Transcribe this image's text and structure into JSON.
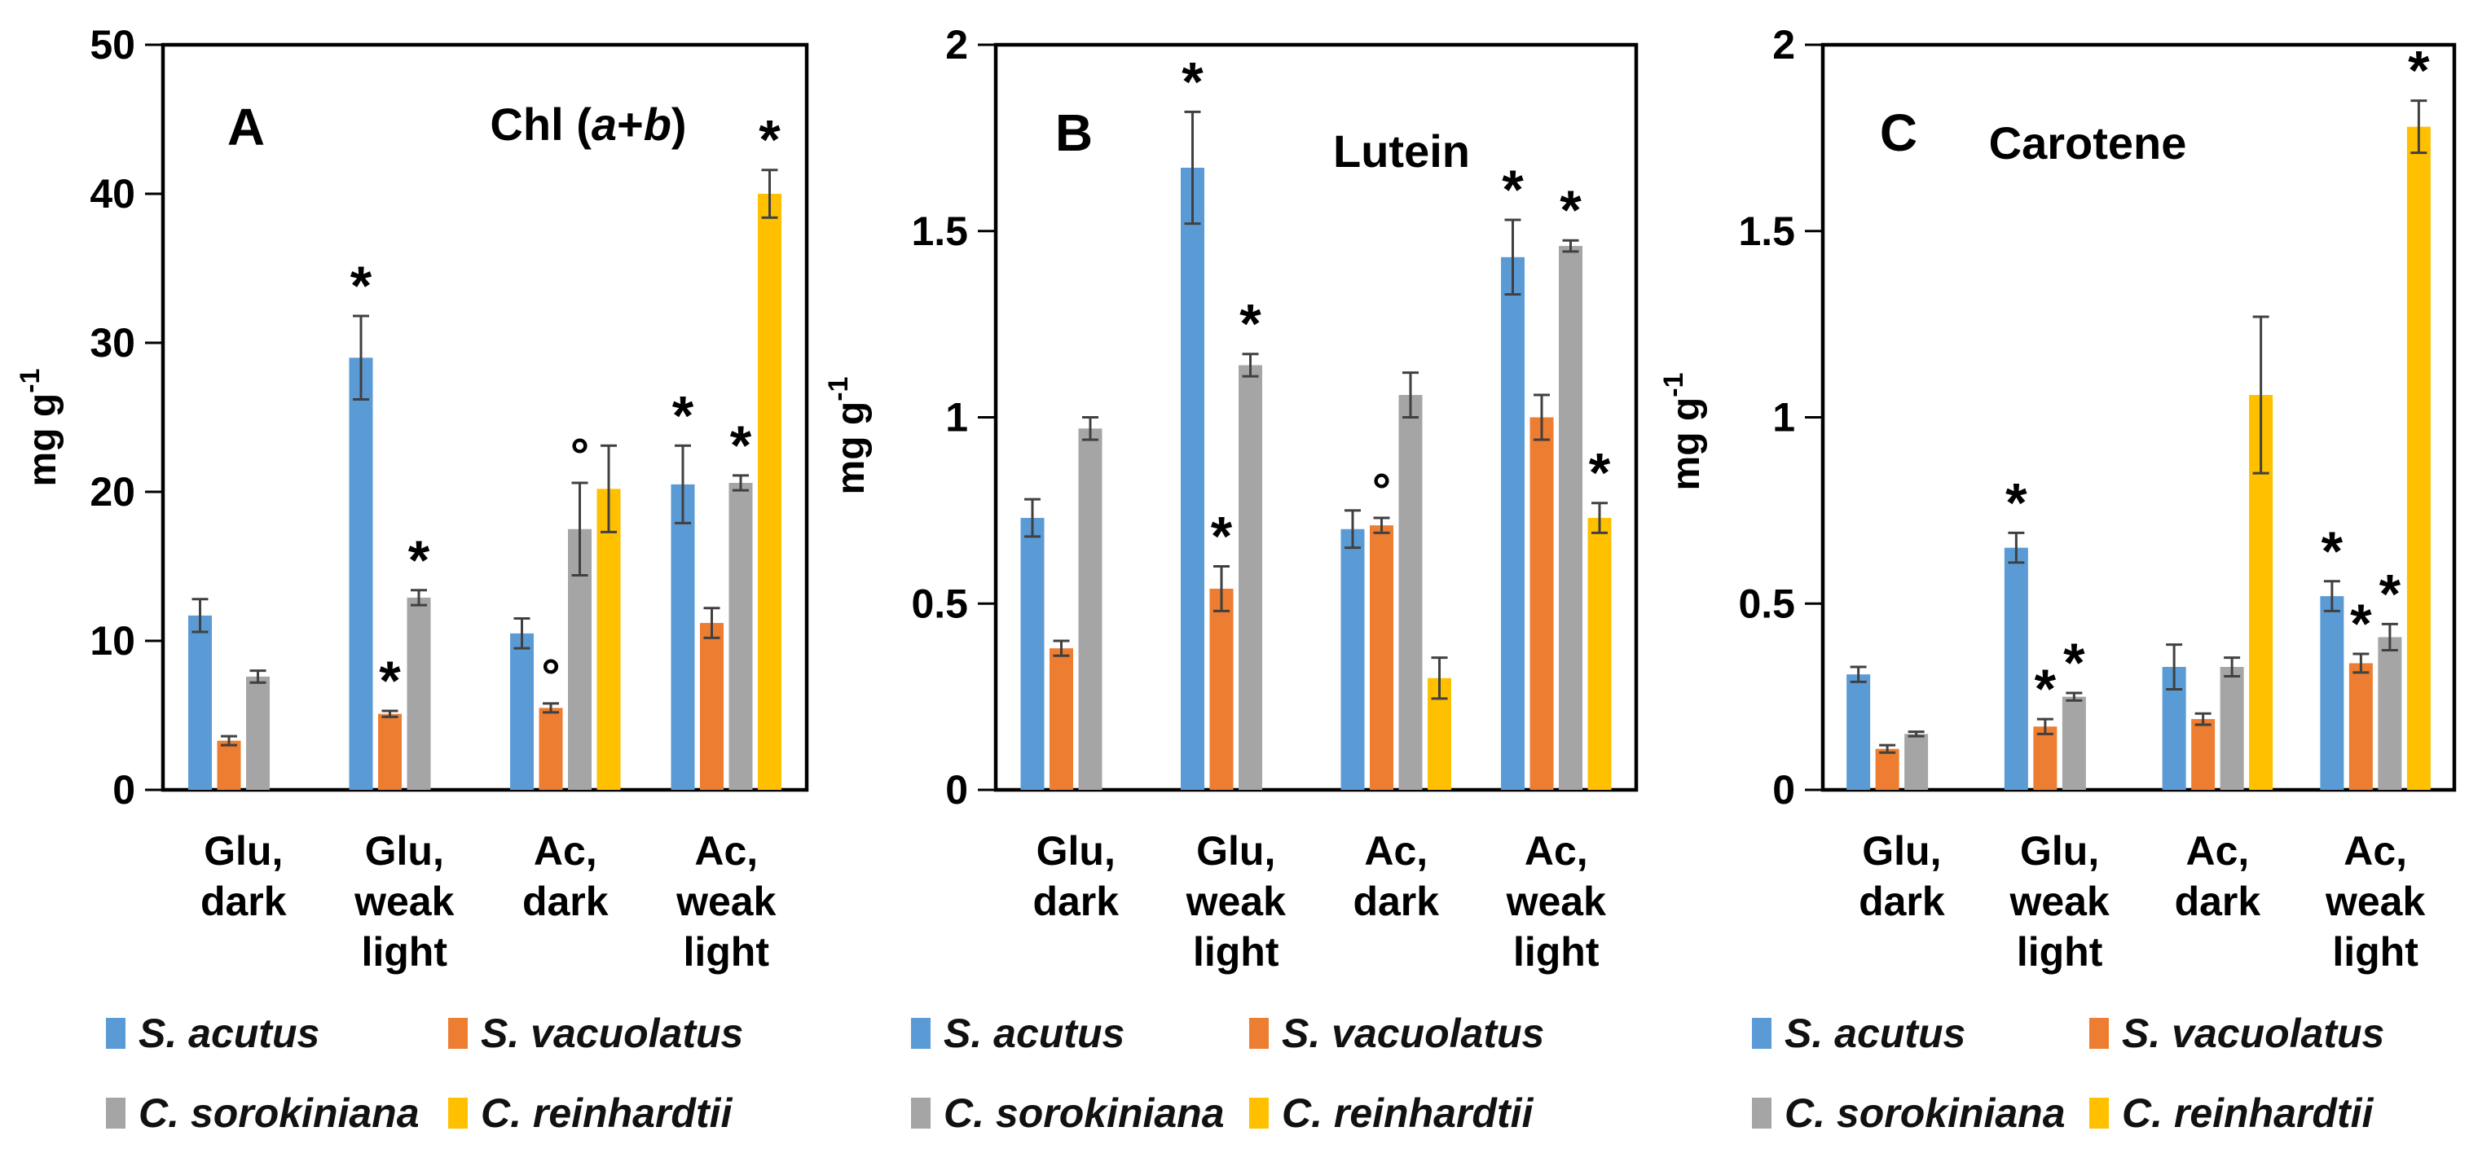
{
  "figure": {
    "background": "#FFFFFF"
  },
  "legend": {
    "items": [
      {
        "label": "S. acutus",
        "color": "#5B9BD5"
      },
      {
        "label": "S. vacuolatus",
        "color": "#ED7D31"
      },
      {
        "label": "C. sorokiniana",
        "color": "#A5A5A5"
      },
      {
        "label": "C. reinhardtii",
        "color": "#FFC000"
      }
    ]
  },
  "chart_data": [
    {
      "type": "bar",
      "panel_label": "A",
      "title": "Chl (a+b)",
      "title_segments": [
        {
          "text": "Chl (",
          "italic": false
        },
        {
          "text": "a",
          "italic": true
        },
        {
          "text": "+",
          "italic": false
        },
        {
          "text": "b",
          "italic": true
        },
        {
          "text": ")",
          "italic": false
        }
      ],
      "ylabel_base": "mg g",
      "ylabel_exponent": "-1",
      "ylim": [
        0,
        50
      ],
      "yticks": [
        0,
        10,
        20,
        30,
        40,
        50
      ],
      "ytick_labels": [
        "0",
        "10",
        "20",
        "30",
        "40",
        "50"
      ],
      "categories": [
        [
          "Glu,",
          "dark"
        ],
        [
          "Glu,",
          "weak",
          "light"
        ],
        [
          "Ac,",
          "dark"
        ],
        [
          "Ac,",
          "weak",
          "light"
        ]
      ],
      "series": [
        {
          "name": "S. acutus",
          "color": "#5B9BD5",
          "values": [
            11.7,
            29.0,
            10.5,
            20.5
          ],
          "errors": [
            1.1,
            2.8,
            1.0,
            2.6
          ],
          "marks": [
            "",
            "*",
            "",
            "*"
          ]
        },
        {
          "name": "S. vacuolatus",
          "color": "#ED7D31",
          "values": [
            3.3,
            5.1,
            5.5,
            11.2
          ],
          "errors": [
            0.3,
            0.2,
            0.3,
            1.0
          ],
          "marks": [
            "",
            "*",
            "°",
            ""
          ]
        },
        {
          "name": "C. sorokiniana",
          "color": "#A5A5A5",
          "values": [
            7.6,
            12.9,
            17.5,
            20.6
          ],
          "errors": [
            0.4,
            0.5,
            3.1,
            0.5
          ],
          "marks": [
            "",
            "*",
            "°",
            "*"
          ]
        },
        {
          "name": "C. reinhardtii",
          "color": "#FFC000",
          "values": [
            null,
            null,
            20.2,
            40.0
          ],
          "errors": [
            null,
            null,
            2.9,
            1.6
          ],
          "marks": [
            "",
            "",
            "",
            "*"
          ]
        }
      ]
    },
    {
      "type": "bar",
      "panel_label": "B",
      "title": "Lutein",
      "title_segments": [
        {
          "text": "Lutein",
          "italic": false
        }
      ],
      "ylabel_base": "mg g",
      "ylabel_exponent": "-1",
      "ylim": [
        0,
        2
      ],
      "yticks": [
        0,
        0.5,
        1,
        1.5,
        2
      ],
      "ytick_labels": [
        "0",
        "0.5",
        "1",
        "1.5",
        "2"
      ],
      "categories": [
        [
          "Glu,",
          "dark"
        ],
        [
          "Glu,",
          "weak",
          "light"
        ],
        [
          "Ac,",
          "dark"
        ],
        [
          "Ac,",
          "weak",
          "light"
        ]
      ],
      "series": [
        {
          "name": "S. acutus",
          "color": "#5B9BD5",
          "values": [
            0.73,
            1.67,
            0.7,
            1.43
          ],
          "errors": [
            0.05,
            0.15,
            0.05,
            0.1
          ],
          "marks": [
            "",
            "*",
            "",
            "*"
          ]
        },
        {
          "name": "S. vacuolatus",
          "color": "#ED7D31",
          "values": [
            0.38,
            0.54,
            0.71,
            1.0
          ],
          "errors": [
            0.02,
            0.06,
            0.02,
            0.06
          ],
          "marks": [
            "",
            "*",
            "°",
            ""
          ]
        },
        {
          "name": "C. sorokiniana",
          "color": "#A5A5A5",
          "values": [
            0.97,
            1.14,
            1.06,
            1.46
          ],
          "errors": [
            0.03,
            0.03,
            0.06,
            0.015
          ],
          "marks": [
            "",
            "*",
            "",
            "*"
          ]
        },
        {
          "name": "C. reinhardtii",
          "color": "#FFC000",
          "values": [
            null,
            null,
            0.3,
            0.73
          ],
          "errors": [
            null,
            null,
            0.055,
            0.04
          ],
          "marks": [
            "",
            "",
            "",
            "*"
          ]
        }
      ]
    },
    {
      "type": "bar",
      "panel_label": "C",
      "title": "Carotene",
      "title_segments": [
        {
          "text": "Carotene",
          "italic": false
        }
      ],
      "ylabel_base": "mg g",
      "ylabel_exponent": "-1",
      "ylim": [
        0,
        2
      ],
      "yticks": [
        0,
        0.5,
        1,
        1.5,
        2
      ],
      "ytick_labels": [
        "0",
        "0.5",
        "1",
        "1.5",
        "2"
      ],
      "categories": [
        [
          "Glu,",
          "dark"
        ],
        [
          "Glu,",
          "weak",
          "light"
        ],
        [
          "Ac,",
          "dark"
        ],
        [
          "Ac,",
          "weak",
          "light"
        ]
      ],
      "series": [
        {
          "name": "S. acutus",
          "color": "#5B9BD5",
          "values": [
            0.31,
            0.65,
            0.33,
            0.52
          ],
          "errors": [
            0.02,
            0.04,
            0.06,
            0.04
          ],
          "marks": [
            "",
            "*",
            "",
            "*"
          ]
        },
        {
          "name": "S. vacuolatus",
          "color": "#ED7D31",
          "values": [
            0.11,
            0.17,
            0.19,
            0.34
          ],
          "errors": [
            0.01,
            0.02,
            0.015,
            0.025
          ],
          "marks": [
            "",
            "*",
            "",
            "*"
          ]
        },
        {
          "name": "C. sorokiniana",
          "color": "#A5A5A5",
          "values": [
            0.15,
            0.25,
            0.33,
            0.41
          ],
          "errors": [
            0.006,
            0.01,
            0.025,
            0.035
          ],
          "marks": [
            "",
            "*",
            "",
            "*"
          ]
        },
        {
          "name": "C. reinhardtii",
          "color": "#FFC000",
          "values": [
            null,
            null,
            1.06,
            1.78
          ],
          "errors": [
            null,
            null,
            0.21,
            0.07
          ],
          "marks": [
            "",
            "",
            "",
            "*"
          ]
        }
      ]
    }
  ]
}
